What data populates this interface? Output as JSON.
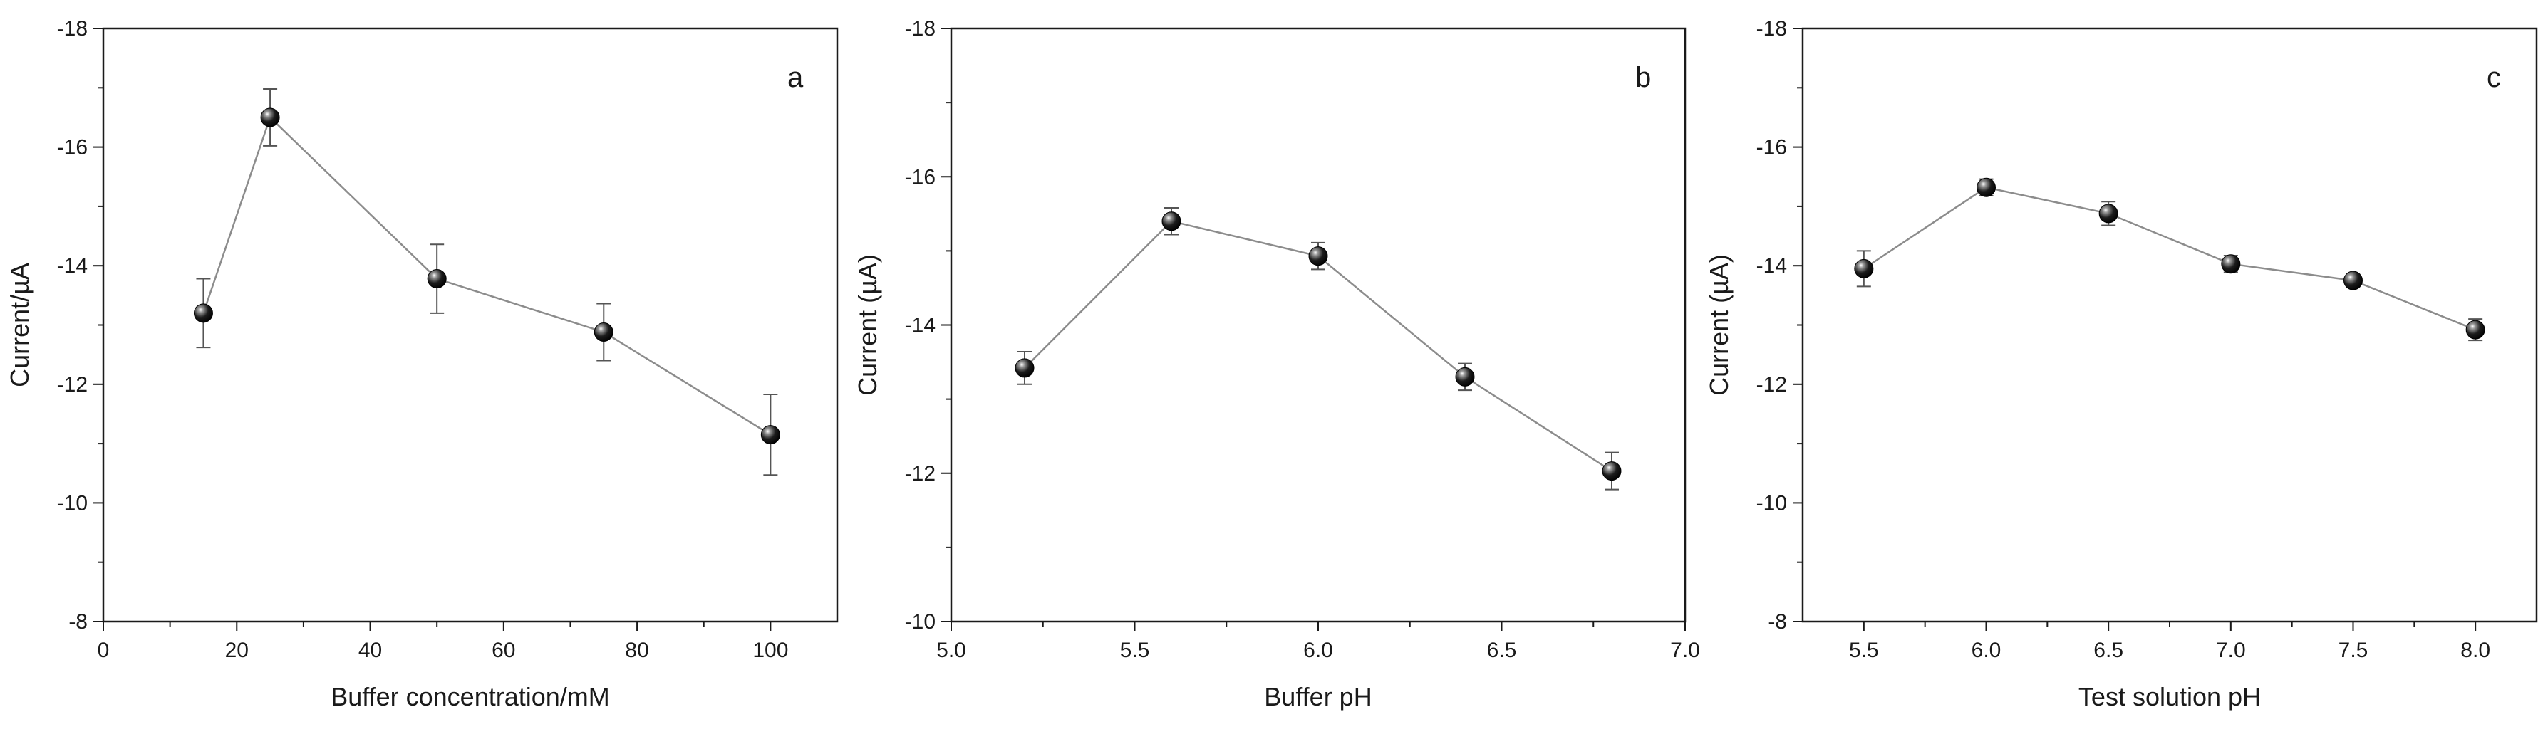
{
  "chart_data": [
    {
      "type": "line",
      "panel_label": "a",
      "xlabel": "Buffer concentration/mM",
      "ylabel": "Current/µA",
      "xlim": [
        0,
        110
      ],
      "ylim": [
        -8,
        -18
      ],
      "y_reversed": true,
      "xticks": [
        "0",
        "20",
        "40",
        "60",
        "80",
        "100"
      ],
      "yticks": [
        "-8",
        "-10",
        "-12",
        "-14",
        "-16",
        "-18"
      ],
      "grid": false,
      "series": [
        {
          "x": [
            15,
            25,
            50,
            75,
            100
          ],
          "y": [
            -13.2,
            -16.5,
            -13.78,
            -12.88,
            -11.15
          ],
          "error": [
            0.58,
            0.48,
            0.58,
            0.48,
            0.68
          ],
          "marker": "sphere",
          "color": "#000000",
          "line_color": "#8c8c8c"
        }
      ]
    },
    {
      "type": "line",
      "panel_label": "b",
      "xlabel": "Buffer pH",
      "ylabel": "Current (µA)",
      "xlim": [
        5.0,
        7.0
      ],
      "ylim": [
        -10,
        -18
      ],
      "y_reversed": true,
      "xticks": [
        "5.0",
        "5.5",
        "6.0",
        "6.5",
        "7.0"
      ],
      "yticks": [
        "-10",
        "-12",
        "-14",
        "-16",
        "-18"
      ],
      "grid": false,
      "series": [
        {
          "x": [
            5.2,
            5.6,
            6.0,
            6.4,
            6.8
          ],
          "y": [
            -13.42,
            -15.4,
            -14.93,
            -13.3,
            -12.03
          ],
          "error": [
            0.22,
            0.18,
            0.18,
            0.18,
            0.25
          ],
          "marker": "sphere",
          "color": "#000000",
          "line_color": "#8c8c8c"
        }
      ]
    },
    {
      "type": "line",
      "panel_label": "c",
      "xlabel": "Test solution pH",
      "ylabel": "Current (µA)",
      "xlim": [
        5.25,
        8.25
      ],
      "ylim": [
        -8,
        -18
      ],
      "y_reversed": true,
      "xticks": [
        "5.5",
        "6.0",
        "6.5",
        "7.0",
        "7.5",
        "8.0"
      ],
      "yticks": [
        "-8",
        "-10",
        "-12",
        "-14",
        "-16",
        "-18"
      ],
      "grid": false,
      "series": [
        {
          "x": [
            5.5,
            6.0,
            6.5,
            7.0,
            7.5,
            8.0
          ],
          "y": [
            -13.95,
            -15.32,
            -14.88,
            -14.03,
            -13.75,
            -12.92
          ],
          "error": [
            0.3,
            0.14,
            0.2,
            0.14,
            0.1,
            0.18
          ],
          "marker": "sphere",
          "color": "#000000",
          "line_color": "#8c8c8c"
        }
      ]
    }
  ]
}
